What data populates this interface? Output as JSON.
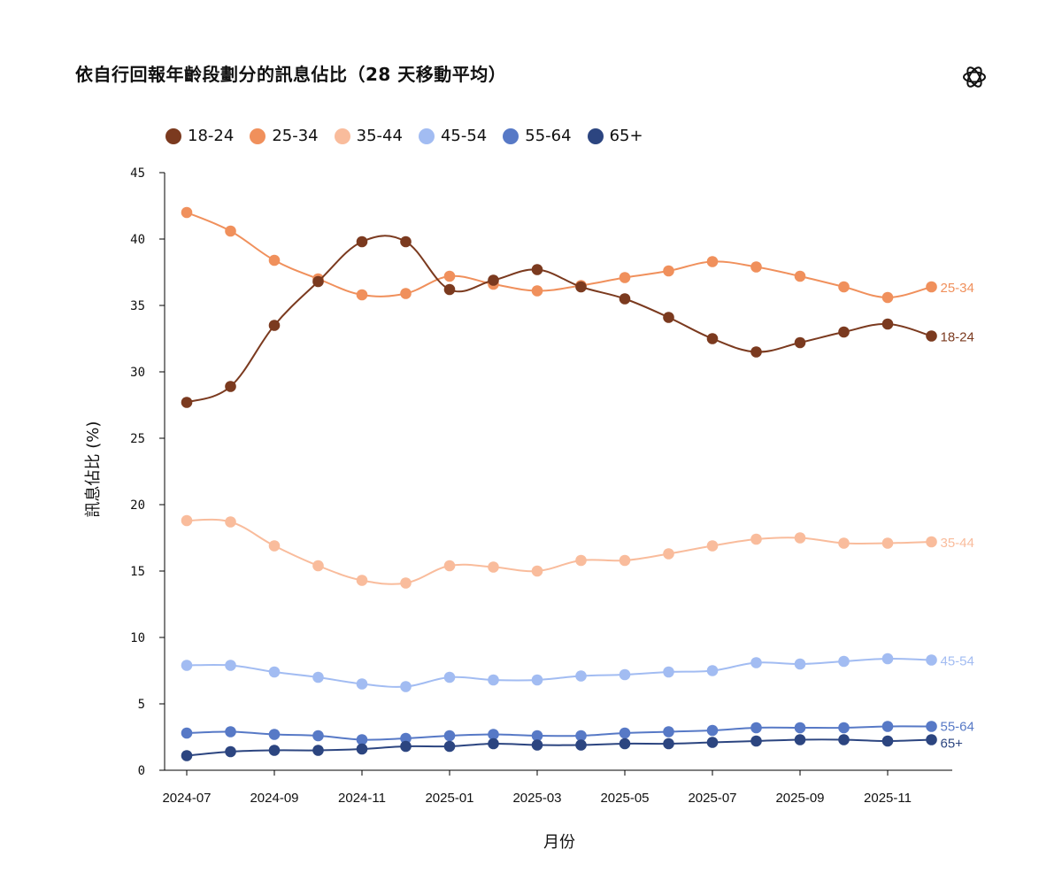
{
  "chart_data": {
    "type": "line",
    "title": "依自行回報年齡段劃分的訊息佔比（28 天移動平均）",
    "xlabel": "月份",
    "ylabel": "訊息佔比 (%)",
    "ylim": [
      0,
      45
    ],
    "yticks": [
      0,
      5,
      10,
      15,
      20,
      25,
      30,
      35,
      40,
      45
    ],
    "x": [
      "2024-07",
      "2024-08",
      "2024-09",
      "2024-10",
      "2024-11",
      "2024-12",
      "2025-01",
      "2025-02",
      "2025-03",
      "2025-04",
      "2025-05",
      "2025-06",
      "2025-07",
      "2025-08",
      "2025-09",
      "2025-10",
      "2025-11",
      "2025-12"
    ],
    "xtick_labels": [
      "2024-07",
      "2024-09",
      "2024-11",
      "2025-01",
      "2025-03",
      "2025-05",
      "2025-07",
      "2025-09",
      "2025-11"
    ],
    "grid": false,
    "legend_position": "top-left",
    "series": [
      {
        "name": "18-24",
        "color": "#7b3a1f",
        "values": [
          27.7,
          28.9,
          33.5,
          36.8,
          39.8,
          39.8,
          36.2,
          36.9,
          37.7,
          36.4,
          35.5,
          34.1,
          32.5,
          31.5,
          32.2,
          33.0,
          33.6,
          32.7
        ]
      },
      {
        "name": "25-34",
        "color": "#f0905c",
        "values": [
          42.0,
          40.6,
          38.4,
          37.0,
          35.8,
          35.9,
          37.2,
          36.6,
          36.1,
          36.5,
          37.1,
          37.6,
          38.3,
          37.9,
          37.2,
          36.4,
          35.6,
          36.4
        ]
      },
      {
        "name": "35-44",
        "color": "#f9bc9c",
        "values": [
          18.8,
          18.7,
          16.9,
          15.4,
          14.3,
          14.1,
          15.4,
          15.3,
          15.0,
          15.8,
          15.8,
          16.3,
          16.9,
          17.4,
          17.5,
          17.1,
          17.1,
          17.2
        ]
      },
      {
        "name": "45-54",
        "color": "#a2bcf2",
        "values": [
          7.9,
          7.9,
          7.4,
          7.0,
          6.5,
          6.3,
          7.0,
          6.8,
          6.8,
          7.1,
          7.2,
          7.4,
          7.5,
          8.1,
          8.0,
          8.2,
          8.4,
          8.3
        ]
      },
      {
        "name": "55-64",
        "color": "#5779c6",
        "values": [
          2.8,
          2.9,
          2.7,
          2.6,
          2.3,
          2.4,
          2.6,
          2.7,
          2.6,
          2.6,
          2.8,
          2.9,
          3.0,
          3.2,
          3.2,
          3.2,
          3.3,
          3.3
        ]
      },
      {
        "name": "65+",
        "color": "#2c4580",
        "values": [
          1.1,
          1.4,
          1.5,
          1.5,
          1.6,
          1.8,
          1.8,
          2.0,
          1.9,
          1.9,
          2.0,
          2.0,
          2.1,
          2.2,
          2.3,
          2.3,
          2.2,
          2.3
        ]
      }
    ]
  }
}
